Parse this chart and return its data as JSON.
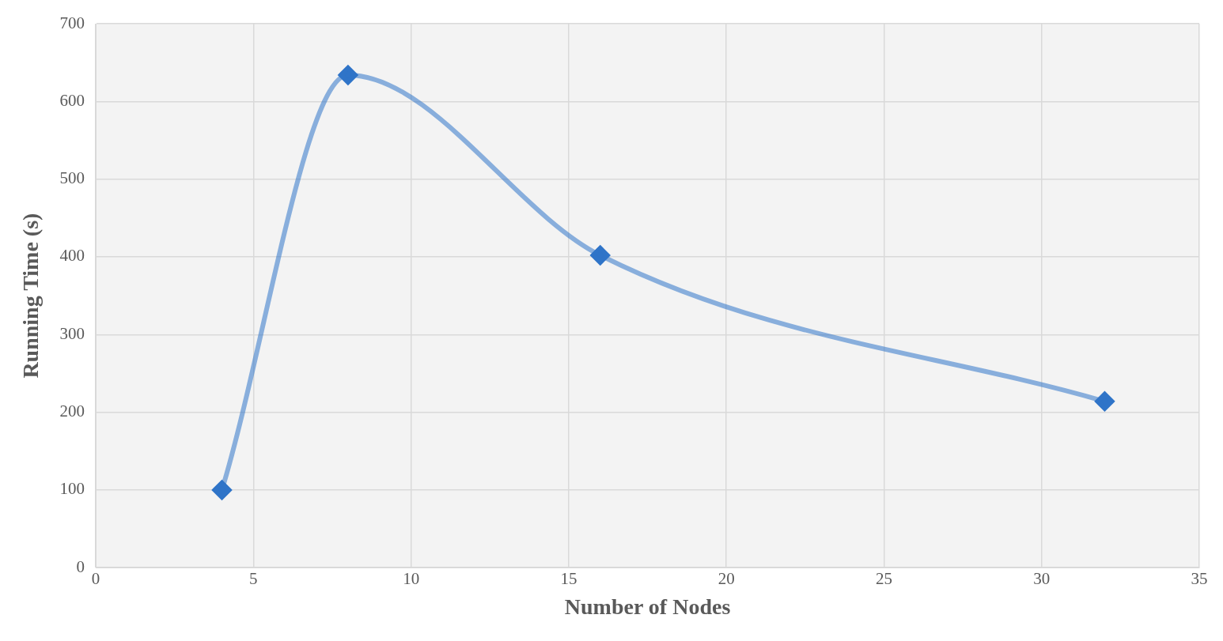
{
  "chart_data": {
    "type": "line",
    "xlabel": "Number of Nodes",
    "ylabel": "Running Time (s)",
    "x": [
      4,
      8,
      16,
      32
    ],
    "series": [
      {
        "color": "#2f74c8",
        "values": [
          100,
          634,
          402,
          214
        ]
      }
    ],
    "xlim": [
      0,
      35
    ],
    "xticks": [
      0,
      5,
      10,
      15,
      20,
      25,
      30,
      35
    ],
    "ylim": [
      0,
      700
    ],
    "yticks": [
      0,
      100,
      200,
      300,
      400,
      500,
      600,
      700
    ],
    "grid": true,
    "legend": false,
    "marker": "diamond",
    "line_style": "solid"
  }
}
